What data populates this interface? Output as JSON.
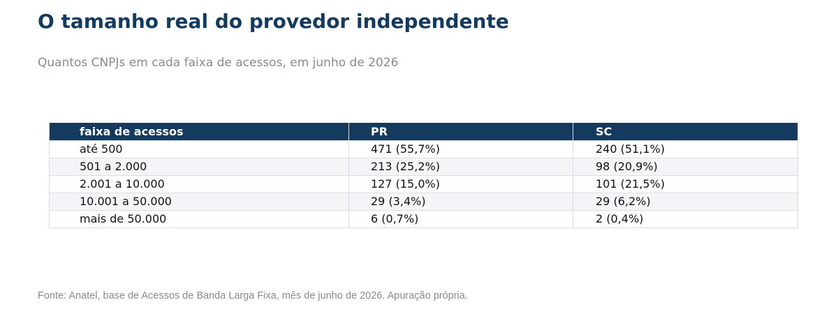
{
  "header": {
    "title": "O tamanho real do provedor independente",
    "subtitle": "Quantos CNPJs em cada faixa de acessos, em junho de 2026"
  },
  "footer": {
    "source": "Fonte: Anatel, base de Acessos de Banda Larga Fixa, mês de junho de 2026. Apuração própria."
  },
  "colors": {
    "header_bg": "#143a5e",
    "title": "#143a5e",
    "muted_text": "#8a8a8a",
    "stripe": "#f4f5f7",
    "border": "#d8dde3"
  },
  "chart_data": {
    "type": "table",
    "title": "O tamanho real do provedor independente",
    "subtitle": "Quantos CNPJs em cada faixa de acessos, em junho de 2026",
    "columns": [
      "faixa de acessos",
      "PR",
      "SC"
    ],
    "rows": [
      [
        "até 500",
        "471  (55,7%)",
        "240  (51,1%)"
      ],
      [
        "501 a 2.000",
        "213  (25,2%)",
        "98  (20,9%)"
      ],
      [
        "2.001 a 10.000",
        "127  (15,0%)",
        "101  (21,5%)"
      ],
      [
        "10.001 a 50.000",
        "29  (3,4%)",
        "29  (6,2%)"
      ],
      [
        "mais de 50.000",
        "6  (0,7%)",
        "2  (0,4%)"
      ]
    ],
    "categories": [
      "até 500",
      "501 a 2.000",
      "2.001 a 10.000",
      "10.001 a 50.000",
      "mais de 50.000"
    ],
    "series": [
      {
        "name": "PR",
        "values": [
          471,
          213,
          127,
          29,
          6
        ],
        "percent": [
          55.7,
          25.2,
          15.0,
          3.4,
          0.7
        ]
      },
      {
        "name": "SC",
        "values": [
          240,
          98,
          101,
          29,
          2
        ],
        "percent": [
          51.1,
          20.9,
          21.5,
          6.2,
          0.4
        ]
      }
    ]
  }
}
